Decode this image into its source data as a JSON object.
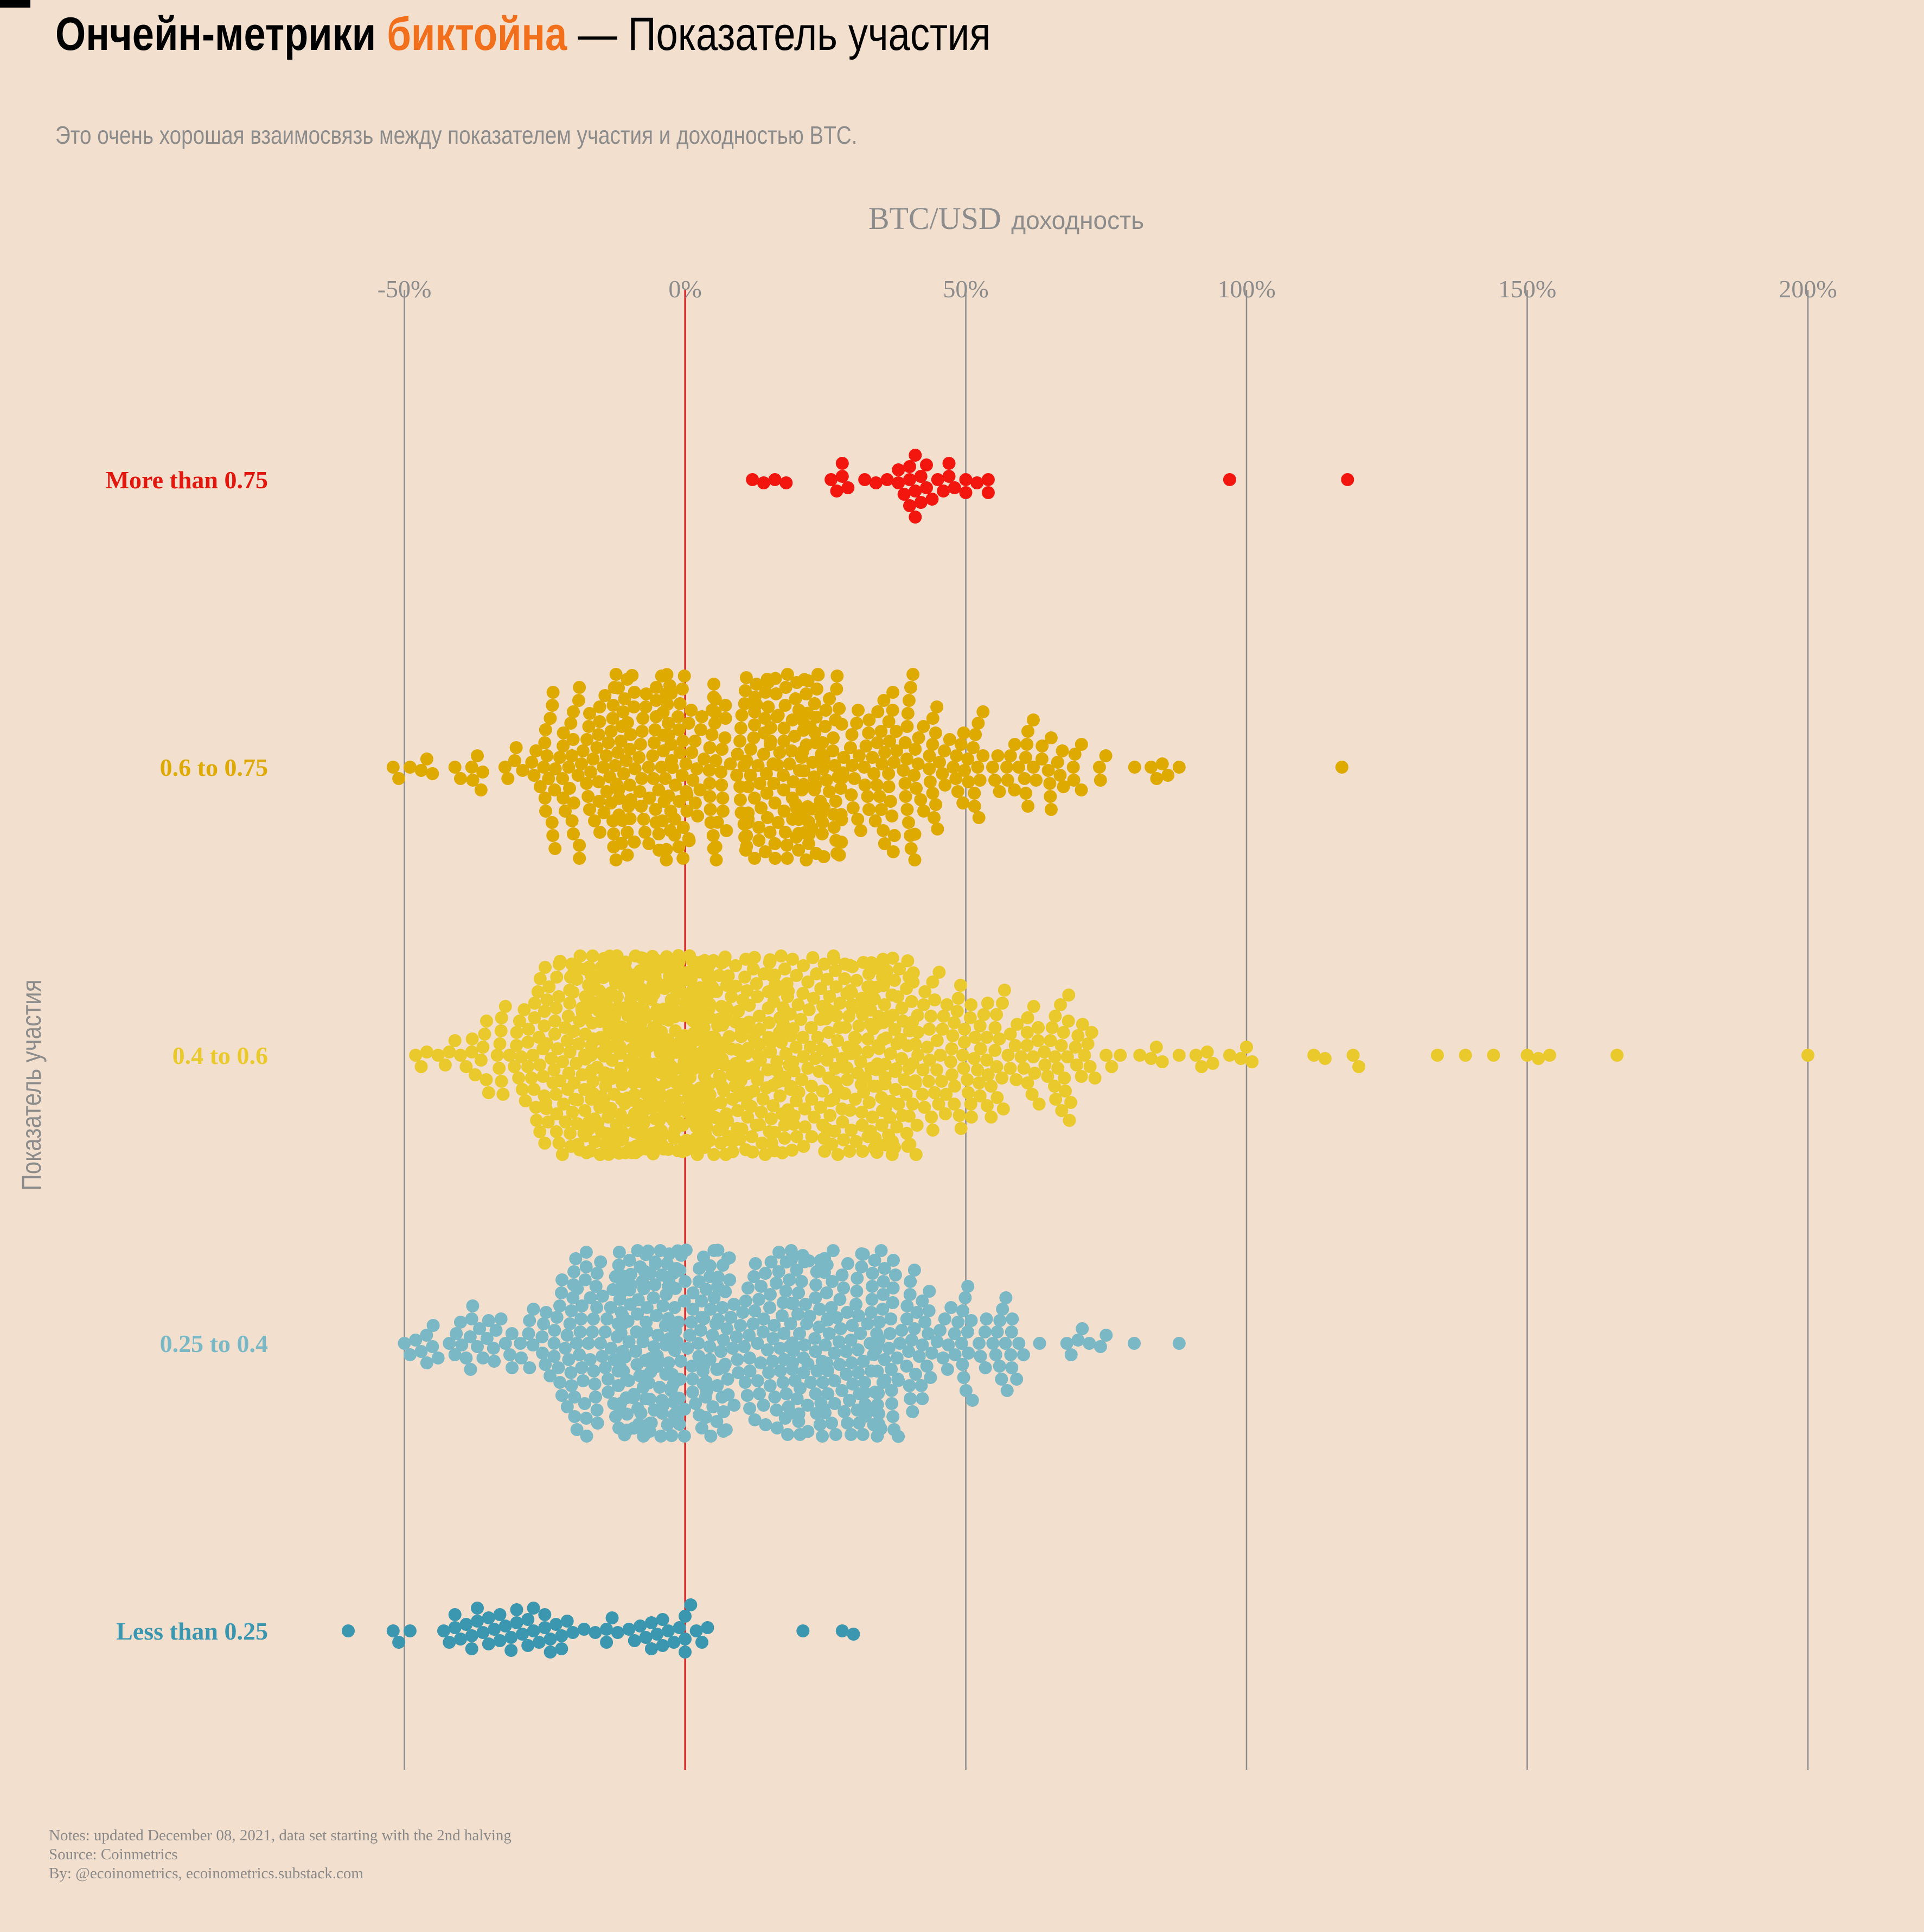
{
  "header": {
    "title_bold": "Ончейн-метрики",
    "title_accent": "биктойна",
    "title_rest": "— Показатель участия",
    "accent_color": "#f26f1b",
    "subtitle": "Это очень хорошая взаимосвязь между показателем участия и доходностью BTC."
  },
  "footer": {
    "notes": "Notes: updated December 08, 2021, data set starting with the 2nd halving",
    "source": "Source: Coinmetrics",
    "by": "By: @ecoinometrics, ecoinometrics.substack.com"
  },
  "chart_data": {
    "type": "scatter",
    "subtype": "beeswarm",
    "xlabel_main": "BTC/USD",
    "xlabel_sub": "доходность",
    "ylabel": "Показатель участия",
    "xlim": [
      -100,
      210
    ],
    "x_ticks": [
      -50,
      0,
      50,
      100,
      150,
      200
    ],
    "x_tick_labels": [
      "-50%",
      "0%",
      "50%",
      "100%",
      "150%",
      "200%"
    ],
    "x_axis_position": "top",
    "grid": true,
    "zero_line_color": "#d9161b",
    "gridline_color": "#8c8c8c",
    "series": [
      {
        "name": "More than 0.75",
        "color": "#f2160f",
        "label_color": "#e2180f",
        "spread": 0.7,
        "values": [
          12,
          14,
          16,
          18,
          26,
          27,
          28,
          28,
          29,
          32,
          34,
          36,
          38,
          38,
          39,
          40,
          40,
          40,
          41,
          41,
          41,
          42,
          42,
          43,
          43,
          44,
          45,
          46,
          47,
          47,
          48,
          50,
          50,
          52,
          54,
          54,
          97,
          118
        ]
      },
      {
        "name": "0.6 to 0.75",
        "color": "#deaa00",
        "label_color": "#deaa00",
        "spread": 0.75,
        "values": [
          -52,
          -51,
          -49,
          -47,
          -46,
          -45,
          -41,
          -40,
          -38,
          -37,
          83,
          84,
          85,
          86,
          88,
          117
        ],
        "generated_groups": [
          {
            "mean": -5,
            "sd": 14,
            "count": 260
          },
          {
            "mean": 24,
            "sd": 10,
            "count": 170
          },
          {
            "mean": 48,
            "sd": 12,
            "count": 90
          },
          {
            "mean": 68,
            "sd": 5,
            "count": 14
          }
        ]
      },
      {
        "name": "0.4 to 0.6",
        "color": "#e9c92b",
        "label_color": "#e9c92b",
        "spread": 0.8,
        "values": [
          -48,
          -47,
          -46,
          -44,
          -42,
          -41,
          -40,
          -39,
          -38,
          -36,
          -35,
          -33,
          -32,
          -30,
          -29,
          -28,
          81,
          83,
          85,
          88,
          91,
          92,
          93,
          94,
          97,
          99,
          100,
          101,
          112,
          114,
          119,
          120,
          134,
          139,
          144,
          150,
          152,
          154,
          166,
          200
        ],
        "generated_groups": [
          {
            "mean": -3,
            "sd": 13,
            "count": 820
          },
          {
            "mean": 32,
            "sd": 7,
            "count": 190
          },
          {
            "mean": 54,
            "sd": 9,
            "count": 110
          },
          {
            "mean": 70,
            "sd": 5,
            "count": 20
          }
        ]
      },
      {
        "name": "0.25 to 0.4",
        "color": "#7ab8c6",
        "label_color": "#7ab8c6",
        "spread": 0.75,
        "values": [
          -50,
          -49,
          -48,
          -47,
          -46,
          -45,
          -44,
          -42,
          -41,
          -40,
          -39,
          -38,
          -37,
          -36,
          -35,
          -34,
          68,
          70,
          72,
          74,
          75,
          80,
          88
        ],
        "generated_groups": [
          {
            "mean": -6,
            "sd": 13,
            "count": 330
          },
          {
            "mean": 29,
            "sd": 10,
            "count": 230
          },
          {
            "mean": 53,
            "sd": 7,
            "count": 40
          }
        ]
      },
      {
        "name": "Less than 0.25",
        "color": "#3b97b0",
        "label_color": "#3b97b0",
        "spread": 0.75,
        "values": [
          -60,
          -52,
          -51,
          -49,
          -43,
          -42,
          -41,
          -41,
          -40,
          -39,
          -38,
          -38,
          -37,
          -37,
          -36,
          -35,
          -35,
          -34,
          -33,
          -33,
          -32,
          -31,
          -31,
          -30,
          -30,
          -29,
          -28,
          -28,
          -27,
          -27,
          -26,
          -25,
          -25,
          -24,
          -24,
          -23,
          -22,
          -22,
          -21,
          -20,
          -18,
          -16,
          -14,
          -14,
          -13,
          -12,
          -10,
          -9,
          -8,
          -7,
          -6,
          -6,
          -5,
          -4,
          -4,
          -3,
          -2,
          -1,
          0,
          0,
          0,
          1,
          2,
          3,
          4,
          21,
          28,
          30
        ]
      }
    ]
  }
}
